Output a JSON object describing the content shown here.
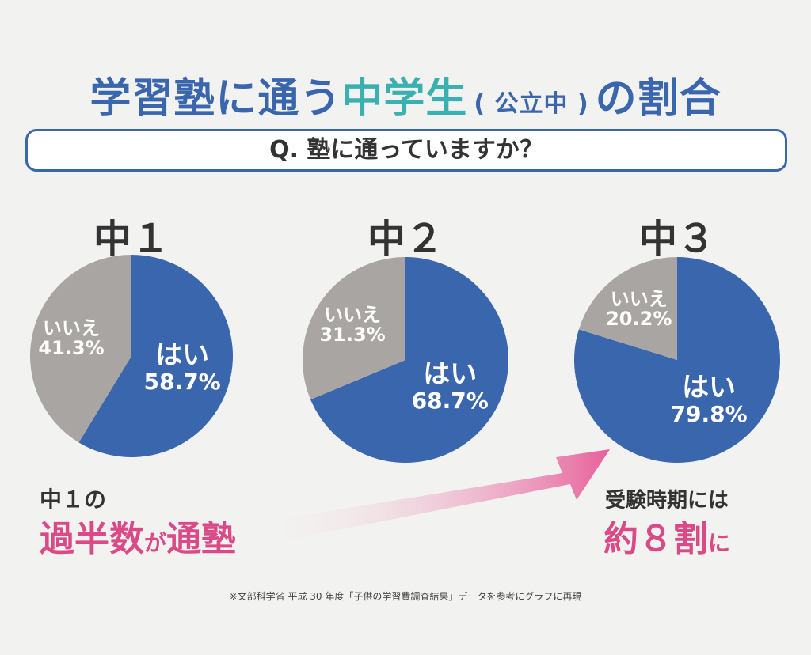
{
  "title": {
    "part1": "学習塾に通う",
    "part2": "中学生",
    "part3": "( 公立中 )",
    "part4": "の割合"
  },
  "question": "Q. 塾に通っていますか？",
  "colors": {
    "yes": "#3a66ae",
    "no": "#a9a5a2",
    "accent": "#d94a86",
    "teal": "#3bb0b0"
  },
  "chart_data": [
    {
      "type": "pie",
      "title": "中１",
      "labels": [
        "はい",
        "いいえ"
      ],
      "values": [
        58.7,
        41.3
      ],
      "value_labels": [
        "58.7%",
        "41.3%"
      ]
    },
    {
      "type": "pie",
      "title": "中２",
      "labels": [
        "はい",
        "いいえ"
      ],
      "values": [
        68.7,
        31.3
      ],
      "value_labels": [
        "68.7%",
        "31.3%"
      ]
    },
    {
      "type": "pie",
      "title": "中３",
      "labels": [
        "はい",
        "いいえ"
      ],
      "values": [
        79.8,
        20.2
      ],
      "value_labels": [
        "79.8%",
        "20.2%"
      ]
    }
  ],
  "notes": {
    "left_line1": "中１の",
    "left_a": "過半数",
    "left_b": "が",
    "left_c": "通塾",
    "right_line1": "受験時期には",
    "right_a": "約８割",
    "right_b": "に"
  },
  "footnote": "※文部科学省 平成 30 年度「子供の学習費調査結果」データを参考にグラフに再現"
}
